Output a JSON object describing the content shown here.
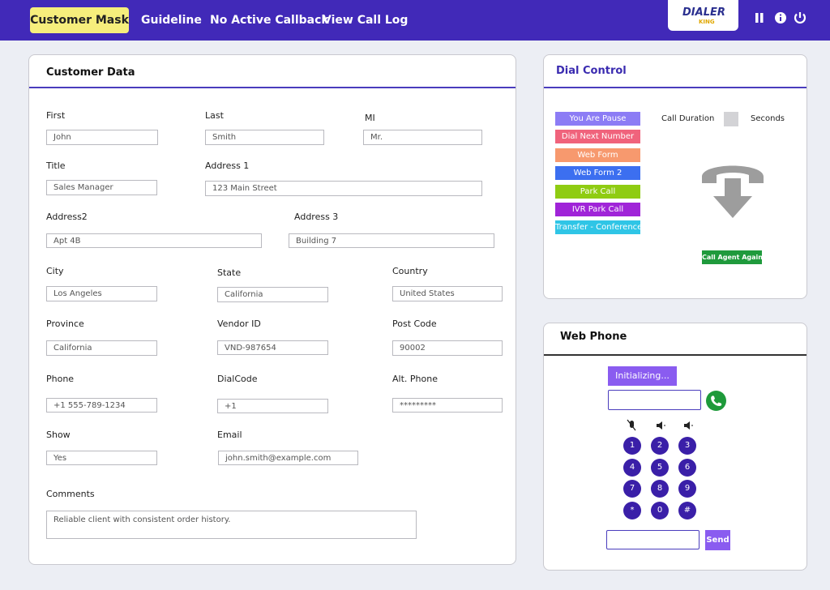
{
  "header": {
    "tabs": [
      "Customer Mask",
      "Guideline",
      "No Active Callback",
      "View Call Log"
    ],
    "logo": {
      "text": "DIALER",
      "subtext": "KING"
    }
  },
  "customer_data": {
    "title": "Customer Data",
    "fields": [
      {
        "label": "First",
        "value": "John"
      },
      {
        "label": "Last",
        "value": "Smith"
      },
      {
        "label": "MI",
        "value": "Mr."
      },
      {
        "label": "Title",
        "value": "Sales Manager"
      },
      {
        "label": "Address 1",
        "value": "123 Main Street"
      },
      {
        "label": "Address2",
        "value": "Apt 4B"
      },
      {
        "label": "Address 3",
        "value": "Building 7"
      },
      {
        "label": "City",
        "value": "Los Angeles"
      },
      {
        "label": "State",
        "value": "California"
      },
      {
        "label": "Country",
        "value": "United States"
      },
      {
        "label": "Province",
        "value": "California"
      },
      {
        "label": "Vendor ID",
        "value": "VND-987654"
      },
      {
        "label": "Post  Code",
        "value": "90002"
      },
      {
        "label": "Phone",
        "value": "+1 555-789-1234"
      },
      {
        "label": "DialCode",
        "value": "+1"
      },
      {
        "label": "Alt. Phone",
        "value": "*********"
      },
      {
        "label": "Show",
        "value": "Yes"
      },
      {
        "label": "Email",
        "value": "john.smith@example.com"
      },
      {
        "label": "Comments",
        "value": "Reliable client with consistent order history."
      }
    ]
  },
  "dial_control": {
    "title": "Dial Control",
    "buttons": [
      "You Are Pause",
      "Dial Next Number",
      "Web Form",
      "Web Form 2",
      "Park Call",
      "IVR Park Call",
      "Transfer - Conference"
    ],
    "call_duration_label": "Call Duration",
    "seconds_label": "Seconds",
    "call_agent_again": "Call Agent Again"
  },
  "web_phone": {
    "title": "Web Phone",
    "status": "Initializing...",
    "keypad": [
      "1",
      "2",
      "3",
      "4",
      "5",
      "6",
      "7",
      "8",
      "9",
      "*",
      "0",
      "#"
    ],
    "send": "Send"
  }
}
